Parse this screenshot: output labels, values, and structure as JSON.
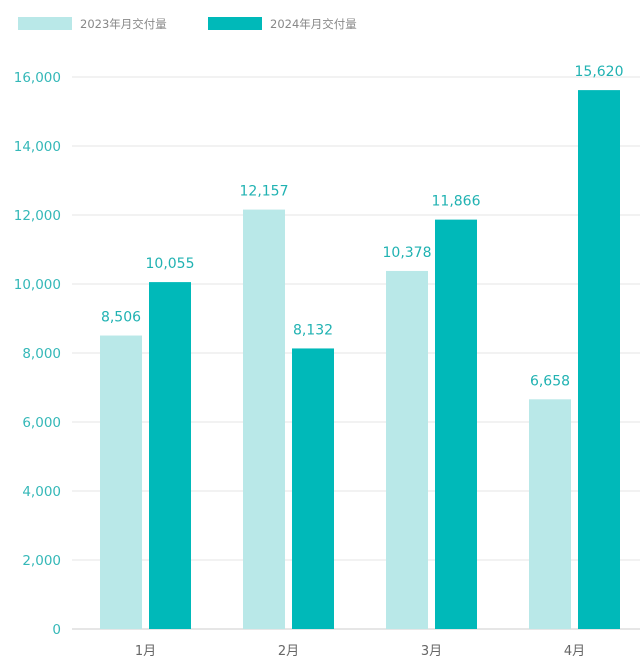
{
  "colors": {
    "series_2023": "#b9e8e8",
    "series_2024": "#00b9b9",
    "tick_text": "#35b8b8",
    "grid": "#e4e4e4"
  },
  "chart_data": {
    "type": "bar",
    "categories": [
      "1月",
      "2月",
      "3月",
      "4月"
    ],
    "series": [
      {
        "name": "2023年月交付量",
        "values": [
          8506,
          12157,
          10378,
          6658
        ],
        "labels": [
          "8,506",
          "12,157",
          "10,378",
          "6,658"
        ]
      },
      {
        "name": "2024年月交付量",
        "values": [
          10055,
          8132,
          11866,
          15620
        ],
        "labels": [
          "10,055",
          "8,132",
          "11,866",
          "15,620"
        ]
      }
    ],
    "yticks": [
      0,
      2000,
      4000,
      6000,
      8000,
      10000,
      12000,
      14000,
      16000
    ],
    "ytick_labels": [
      "0",
      "2,000",
      "4,000",
      "6,000",
      "8,000",
      "10,000",
      "12,000",
      "14,000",
      "16,000"
    ],
    "ylim": [
      0,
      16000
    ],
    "grid": true,
    "legend": "top-left",
    "title": "",
    "xlabel": "",
    "ylabel": ""
  }
}
